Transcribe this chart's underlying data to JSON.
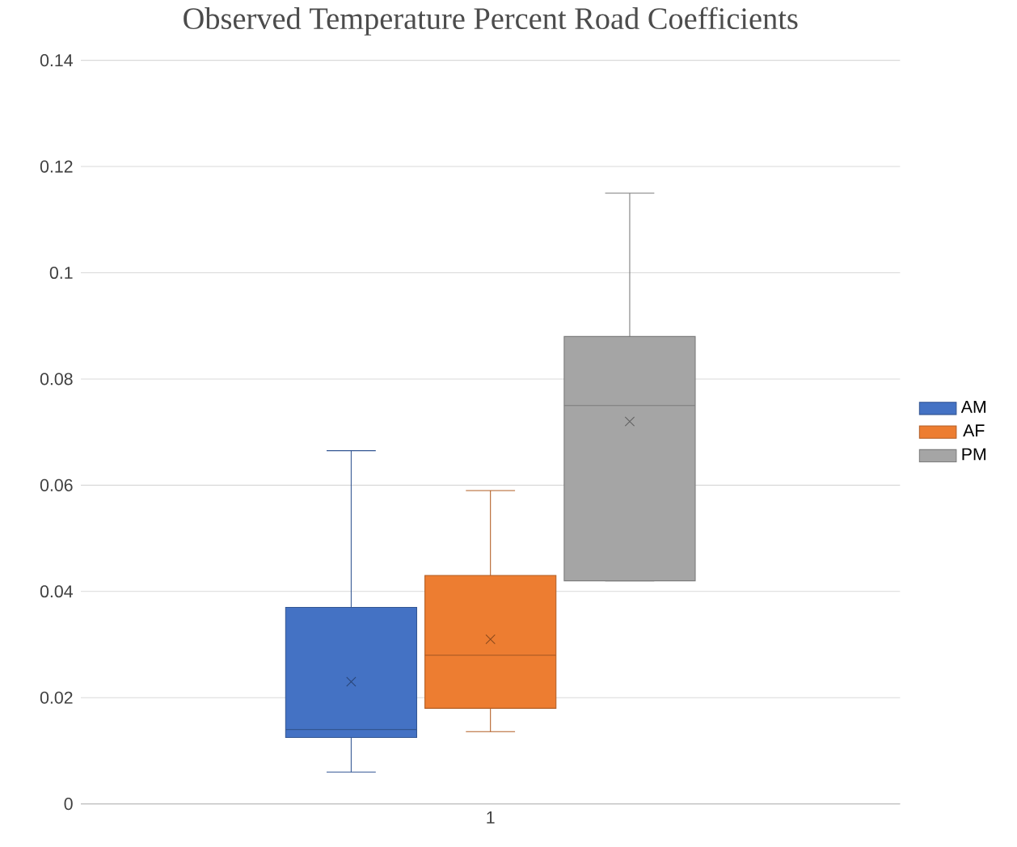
{
  "chart_data": {
    "type": "box",
    "title": "Observed Temperature Percent Road Coefficients",
    "categories": [
      "1"
    ],
    "series": [
      {
        "name": "AM",
        "color": "#4472c4",
        "boxes": [
          {
            "low": 0.006,
            "q1": 0.0125,
            "median": 0.014,
            "q3": 0.037,
            "high": 0.0665,
            "mean": 0.023
          }
        ]
      },
      {
        "name": "AF",
        "color": "#ed7d31",
        "boxes": [
          {
            "low": 0.0136,
            "q1": 0.018,
            "median": 0.028,
            "q3": 0.043,
            "high": 0.059,
            "mean": 0.031
          }
        ]
      },
      {
        "name": "PM",
        "color": "#a5a5a5",
        "boxes": [
          {
            "low": 0.042,
            "q1": 0.042,
            "median": 0.075,
            "q3": 0.088,
            "high": 0.115,
            "mean": 0.072
          }
        ]
      }
    ],
    "ylim": [
      0,
      0.14
    ],
    "yticks": [
      0,
      0.02,
      0.04,
      0.06,
      0.08,
      0.1,
      0.12,
      0.14
    ],
    "grid": "y",
    "legend": "right",
    "marker": "cross"
  }
}
